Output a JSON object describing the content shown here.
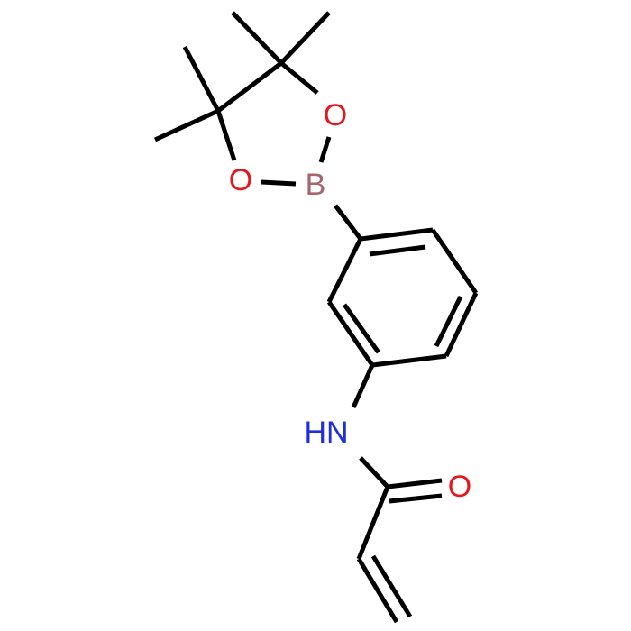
{
  "atoms": [
    {
      "label": "O"
    },
    {
      "label": "O"
    },
    {
      "label": "B"
    },
    {
      "label": "HN"
    },
    {
      "label": "O"
    }
  ]
}
